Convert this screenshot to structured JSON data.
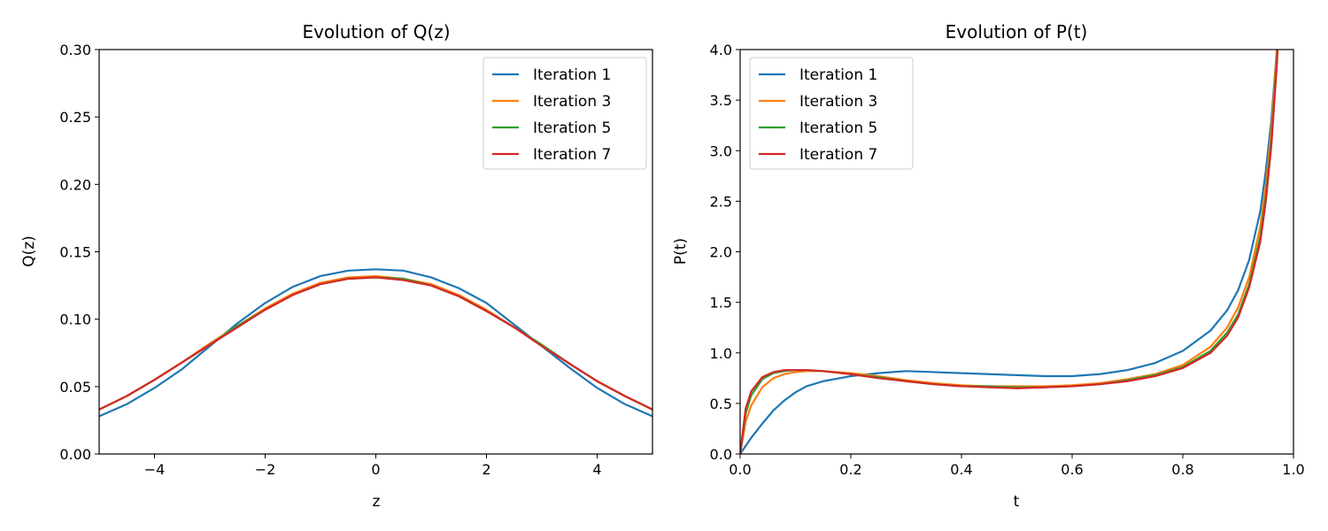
{
  "chart_data": [
    {
      "type": "line",
      "title": "Evolution of Q(z)",
      "xlabel": "z",
      "ylabel": "Q(z)",
      "xlim": [
        -5,
        5
      ],
      "ylim": [
        0,
        0.3
      ],
      "xticks": [
        -4,
        -2,
        0,
        2,
        4
      ],
      "xtick_labels": [
        "−4",
        "−2",
        "0",
        "2",
        "4"
      ],
      "yticks": [
        0,
        0.05,
        0.1,
        0.15,
        0.2,
        0.25,
        0.3
      ],
      "ytick_labels": [
        "0.00",
        "0.05",
        "0.10",
        "0.15",
        "0.20",
        "0.25",
        "0.30"
      ],
      "grid": false,
      "legend_position": "top-right",
      "x": [
        -5,
        -4.5,
        -4,
        -3.5,
        -3,
        -2.5,
        -2,
        -1.5,
        -1,
        -0.5,
        0,
        0.5,
        1,
        1.5,
        2,
        2.5,
        3,
        3.5,
        4,
        4.5,
        5
      ],
      "series": [
        {
          "name": "Iteration 1",
          "color": "#1f77b4",
          "values": [
            0.028,
            0.037,
            0.049,
            0.063,
            0.08,
            0.097,
            0.112,
            0.124,
            0.132,
            0.136,
            0.137,
            0.136,
            0.131,
            0.123,
            0.112,
            0.096,
            0.08,
            0.064,
            0.049,
            0.037,
            0.028
          ]
        },
        {
          "name": "Iteration 3",
          "color": "#ff7f0e",
          "values": [
            0.033,
            0.043,
            0.055,
            0.068,
            0.082,
            0.095,
            0.108,
            0.119,
            0.127,
            0.131,
            0.132,
            0.13,
            0.126,
            0.118,
            0.107,
            0.094,
            0.081,
            0.067,
            0.054,
            0.043,
            0.033
          ]
        },
        {
          "name": "Iteration 5",
          "color": "#2ca02c",
          "values": [
            0.033,
            0.043,
            0.055,
            0.068,
            0.081,
            0.095,
            0.107,
            0.118,
            0.126,
            0.13,
            0.131,
            0.13,
            0.125,
            0.117,
            0.106,
            0.094,
            0.081,
            0.067,
            0.054,
            0.043,
            0.033
          ]
        },
        {
          "name": "Iteration 7",
          "color": "#d62728",
          "values": [
            0.033,
            0.043,
            0.055,
            0.068,
            0.081,
            0.094,
            0.107,
            0.118,
            0.126,
            0.13,
            0.131,
            0.129,
            0.125,
            0.117,
            0.106,
            0.094,
            0.08,
            0.067,
            0.054,
            0.043,
            0.033
          ]
        }
      ]
    },
    {
      "type": "line",
      "title": "Evolution of P(t)",
      "xlabel": "t",
      "ylabel": "P(t)",
      "xlim": [
        0,
        1
      ],
      "ylim": [
        0,
        4
      ],
      "xticks": [
        0,
        0.2,
        0.4,
        0.6,
        0.8,
        1.0
      ],
      "xtick_labels": [
        "0.0",
        "0.2",
        "0.4",
        "0.6",
        "0.8",
        "1.0"
      ],
      "yticks": [
        0,
        0.5,
        1,
        1.5,
        2,
        2.5,
        3,
        3.5,
        4
      ],
      "ytick_labels": [
        "0.0",
        "0.5",
        "1.0",
        "1.5",
        "2.0",
        "2.5",
        "3.0",
        "3.5",
        "4.0"
      ],
      "grid": false,
      "legend_position": "top-left",
      "x": [
        0,
        0.01,
        0.02,
        0.04,
        0.06,
        0.08,
        0.1,
        0.12,
        0.15,
        0.2,
        0.25,
        0.3,
        0.35,
        0.4,
        0.45,
        0.5,
        0.55,
        0.6,
        0.65,
        0.7,
        0.75,
        0.8,
        0.85,
        0.88,
        0.9,
        0.92,
        0.94,
        0.95,
        0.96,
        0.97,
        0.98
      ],
      "series": [
        {
          "name": "Iteration 1",
          "color": "#1f77b4",
          "values": [
            0.0,
            0.08,
            0.16,
            0.3,
            0.43,
            0.53,
            0.61,
            0.67,
            0.72,
            0.77,
            0.8,
            0.82,
            0.81,
            0.8,
            0.79,
            0.78,
            0.77,
            0.77,
            0.79,
            0.83,
            0.9,
            1.02,
            1.22,
            1.42,
            1.62,
            1.92,
            2.4,
            2.8,
            3.3,
            4.0,
            4.9
          ]
        },
        {
          "name": "Iteration 3",
          "color": "#ff7f0e",
          "values": [
            0.0,
            0.32,
            0.48,
            0.66,
            0.75,
            0.79,
            0.81,
            0.82,
            0.82,
            0.8,
            0.77,
            0.73,
            0.7,
            0.68,
            0.67,
            0.67,
            0.67,
            0.68,
            0.7,
            0.74,
            0.79,
            0.88,
            1.06,
            1.25,
            1.45,
            1.75,
            2.25,
            2.65,
            3.2,
            4.0,
            5.0
          ]
        },
        {
          "name": "Iteration 5",
          "color": "#2ca02c",
          "values": [
            0.0,
            0.4,
            0.58,
            0.74,
            0.8,
            0.82,
            0.83,
            0.83,
            0.82,
            0.79,
            0.76,
            0.72,
            0.69,
            0.67,
            0.67,
            0.66,
            0.66,
            0.67,
            0.69,
            0.73,
            0.78,
            0.86,
            1.02,
            1.2,
            1.38,
            1.68,
            2.15,
            2.55,
            3.1,
            3.9,
            5.0
          ]
        },
        {
          "name": "Iteration 7",
          "color": "#d62728",
          "values": [
            0.0,
            0.45,
            0.62,
            0.76,
            0.81,
            0.83,
            0.83,
            0.83,
            0.82,
            0.79,
            0.75,
            0.72,
            0.69,
            0.67,
            0.66,
            0.65,
            0.66,
            0.67,
            0.69,
            0.72,
            0.77,
            0.85,
            1.0,
            1.17,
            1.35,
            1.65,
            2.1,
            2.5,
            3.05,
            3.85,
            5.0
          ]
        }
      ]
    }
  ]
}
